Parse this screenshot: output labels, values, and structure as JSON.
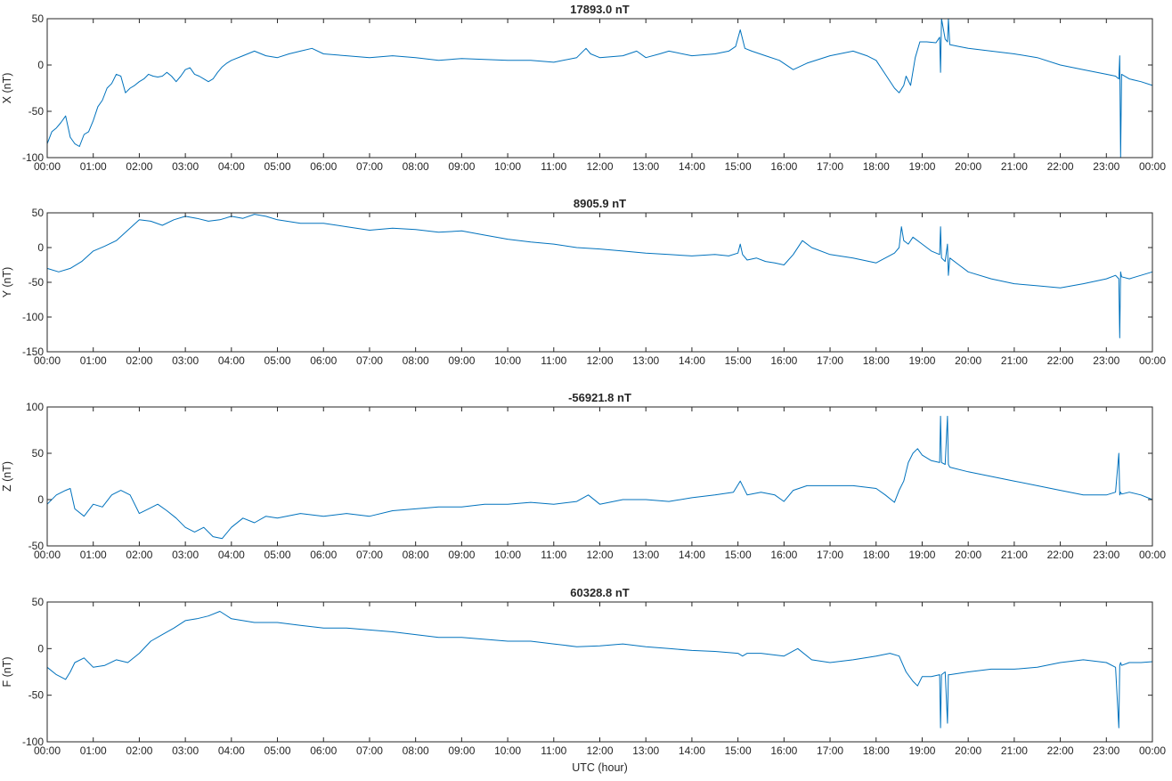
{
  "chart_data": [
    {
      "type": "line",
      "title": "17893.0 nT",
      "ylabel": "X (nT)",
      "xlabel": "",
      "ylim": [
        -100,
        50
      ],
      "yticks": [
        -100,
        -50,
        0,
        50
      ],
      "xlim": [
        0,
        24
      ],
      "xtick_labels": [
        "00:00",
        "01:00",
        "02:00",
        "03:00",
        "04:00",
        "05:00",
        "06:00",
        "07:00",
        "08:00",
        "09:00",
        "10:00",
        "11:00",
        "12:00",
        "13:00",
        "14:00",
        "15:00",
        "16:00",
        "17:00",
        "18:00",
        "19:00",
        "20:00",
        "21:00",
        "22:00",
        "23:00",
        "00:00"
      ],
      "grid": false,
      "color": "#0072BD",
      "series": [
        {
          "x": [
            0,
            0.1,
            0.2,
            0.3,
            0.4,
            0.5,
            0.6,
            0.7,
            0.8,
            0.9,
            1.0,
            1.1,
            1.2,
            1.3,
            1.4,
            1.5,
            1.6,
            1.7,
            1.8,
            1.9,
            2.0,
            2.1,
            2.2,
            2.3,
            2.4,
            2.5,
            2.6,
            2.7,
            2.8,
            2.9,
            3.0,
            3.1,
            3.2,
            3.3,
            3.4,
            3.5,
            3.6,
            3.7,
            3.8,
            3.9,
            4.0,
            4.25,
            4.5,
            4.75,
            5.0,
            5.25,
            5.5,
            5.75,
            6.0,
            6.5,
            7.0,
            7.5,
            8.0,
            8.5,
            9.0,
            9.5,
            10.0,
            10.5,
            11.0,
            11.5,
            11.7,
            11.8,
            12.0,
            12.5,
            12.8,
            13.0,
            13.3,
            13.5,
            14.0,
            14.5,
            14.8,
            14.95,
            15.05,
            15.15,
            15.3,
            15.6,
            15.9,
            16.2,
            16.5,
            17.0,
            17.5,
            17.8,
            18.0,
            18.2,
            18.4,
            18.5,
            18.6,
            18.65,
            18.75,
            18.85,
            18.95,
            19.1,
            19.3,
            19.38,
            19.4,
            19.42,
            19.5,
            19.55,
            19.57,
            19.6,
            19.8,
            20.0,
            20.5,
            21.0,
            21.5,
            22.0,
            22.5,
            23.0,
            23.2,
            23.27,
            23.29,
            23.31,
            23.33,
            23.5,
            23.75,
            24.0
          ],
          "y": [
            -85,
            -72,
            -68,
            -62,
            -55,
            -78,
            -85,
            -88,
            -75,
            -72,
            -60,
            -45,
            -38,
            -25,
            -20,
            -10,
            -12,
            -30,
            -25,
            -22,
            -18,
            -15,
            -10,
            -12,
            -13,
            -12,
            -8,
            -12,
            -18,
            -12,
            -5,
            -3,
            -10,
            -12,
            -15,
            -18,
            -15,
            -8,
            -2,
            2,
            5,
            10,
            15,
            10,
            8,
            12,
            15,
            18,
            12,
            10,
            8,
            10,
            8,
            5,
            7,
            6,
            5,
            5,
            3,
            8,
            18,
            12,
            8,
            10,
            15,
            8,
            12,
            15,
            10,
            12,
            15,
            20,
            38,
            18,
            15,
            10,
            5,
            -5,
            2,
            10,
            15,
            10,
            5,
            -10,
            -25,
            -30,
            -22,
            -12,
            -22,
            8,
            25,
            25,
            24,
            30,
            -8,
            50,
            28,
            25,
            50,
            22,
            20,
            18,
            15,
            12,
            8,
            0,
            -5,
            -10,
            -12,
            -15,
            10,
            -100,
            -10,
            -15,
            -18,
            -22
          ]
        }
      ]
    },
    {
      "type": "line",
      "title": "8905.9 nT",
      "ylabel": "Y (nT)",
      "xlabel": "",
      "ylim": [
        -150,
        50
      ],
      "yticks": [
        -150,
        -100,
        -50,
        0,
        50
      ],
      "xlim": [
        0,
        24
      ],
      "xtick_labels": [
        "00:00",
        "01:00",
        "02:00",
        "03:00",
        "04:00",
        "05:00",
        "06:00",
        "07:00",
        "08:00",
        "09:00",
        "10:00",
        "11:00",
        "12:00",
        "13:00",
        "14:00",
        "15:00",
        "16:00",
        "17:00",
        "18:00",
        "19:00",
        "20:00",
        "21:00",
        "22:00",
        "23:00",
        "00:00"
      ],
      "grid": false,
      "color": "#0072BD",
      "series": [
        {
          "x": [
            0,
            0.25,
            0.5,
            0.75,
            1.0,
            1.25,
            1.5,
            1.75,
            2.0,
            2.25,
            2.5,
            2.75,
            3.0,
            3.25,
            3.5,
            3.75,
            4.0,
            4.25,
            4.5,
            4.75,
            5.0,
            5.5,
            6.0,
            6.5,
            7.0,
            7.5,
            8.0,
            8.5,
            9.0,
            9.5,
            10.0,
            10.5,
            11.0,
            11.5,
            12.0,
            12.5,
            13.0,
            13.5,
            14.0,
            14.5,
            14.8,
            15.0,
            15.05,
            15.1,
            15.2,
            15.4,
            15.6,
            15.8,
            16.0,
            16.2,
            16.4,
            16.6,
            17.0,
            17.5,
            18.0,
            18.2,
            18.4,
            18.5,
            18.55,
            18.6,
            18.7,
            18.8,
            19.0,
            19.2,
            19.38,
            19.4,
            19.42,
            19.5,
            19.55,
            19.57,
            19.6,
            19.8,
            20.0,
            20.5,
            21.0,
            21.5,
            22.0,
            22.5,
            23.0,
            23.2,
            23.27,
            23.29,
            23.31,
            23.33,
            23.5,
            23.75,
            24.0
          ],
          "y": [
            -30,
            -35,
            -30,
            -20,
            -5,
            2,
            10,
            25,
            40,
            38,
            32,
            40,
            45,
            42,
            38,
            40,
            45,
            42,
            48,
            45,
            40,
            35,
            35,
            30,
            25,
            28,
            26,
            22,
            24,
            18,
            12,
            8,
            5,
            0,
            -2,
            -5,
            -8,
            -10,
            -12,
            -10,
            -12,
            -8,
            5,
            -10,
            -18,
            -15,
            -20,
            -22,
            -25,
            -10,
            10,
            0,
            -10,
            -15,
            -22,
            -15,
            -8,
            0,
            30,
            10,
            5,
            15,
            5,
            -5,
            -10,
            30,
            -15,
            -20,
            5,
            -40,
            -15,
            -25,
            -35,
            -45,
            -52,
            -55,
            -58,
            -52,
            -45,
            -40,
            -45,
            -130,
            -35,
            -42,
            -45,
            -40,
            -35
          ]
        }
      ]
    },
    {
      "type": "line",
      "title": "-56921.8 nT",
      "ylabel": "Z (nT)",
      "xlabel": "",
      "ylim": [
        -50,
        100
      ],
      "yticks": [
        -50,
        0,
        50,
        100
      ],
      "xlim": [
        0,
        24
      ],
      "xtick_labels": [
        "00:00",
        "01:00",
        "02:00",
        "03:00",
        "04:00",
        "05:00",
        "06:00",
        "07:00",
        "08:00",
        "09:00",
        "10:00",
        "11:00",
        "12:00",
        "13:00",
        "14:00",
        "15:00",
        "16:00",
        "17:00",
        "18:00",
        "19:00",
        "20:00",
        "21:00",
        "22:00",
        "23:00",
        "00:00"
      ],
      "grid": false,
      "color": "#0072BD",
      "series": [
        {
          "x": [
            0,
            0.2,
            0.4,
            0.5,
            0.6,
            0.8,
            1.0,
            1.2,
            1.4,
            1.6,
            1.8,
            2.0,
            2.2,
            2.4,
            2.6,
            2.8,
            3.0,
            3.2,
            3.4,
            3.6,
            3.8,
            4.0,
            4.25,
            4.5,
            4.75,
            5.0,
            5.5,
            6.0,
            6.5,
            7.0,
            7.5,
            8.0,
            8.5,
            9.0,
            9.5,
            10.0,
            10.5,
            11.0,
            11.5,
            11.75,
            12.0,
            12.5,
            13.0,
            13.5,
            14.0,
            14.5,
            14.9,
            15.05,
            15.2,
            15.5,
            15.8,
            16.0,
            16.2,
            16.5,
            17.0,
            17.5,
            18.0,
            18.2,
            18.4,
            18.5,
            18.6,
            18.7,
            18.8,
            18.9,
            19.0,
            19.2,
            19.38,
            19.4,
            19.42,
            19.5,
            19.55,
            19.57,
            19.6,
            20.0,
            20.5,
            21.0,
            21.5,
            22.0,
            22.5,
            23.0,
            23.2,
            23.27,
            23.29,
            23.31,
            23.33,
            23.5,
            23.75,
            24.0
          ],
          "y": [
            -5,
            5,
            10,
            12,
            -10,
            -18,
            -5,
            -8,
            5,
            10,
            5,
            -15,
            -10,
            -5,
            -12,
            -20,
            -30,
            -35,
            -30,
            -40,
            -42,
            -30,
            -20,
            -25,
            -18,
            -20,
            -15,
            -18,
            -15,
            -18,
            -12,
            -10,
            -8,
            -8,
            -5,
            -5,
            -3,
            -5,
            -2,
            5,
            -5,
            0,
            0,
            -2,
            2,
            5,
            8,
            20,
            5,
            8,
            5,
            -2,
            10,
            15,
            15,
            15,
            12,
            5,
            -3,
            10,
            20,
            40,
            50,
            55,
            48,
            42,
            40,
            90,
            40,
            38,
            90,
            38,
            35,
            30,
            25,
            20,
            15,
            10,
            5,
            5,
            8,
            50,
            5,
            8,
            6,
            8,
            5,
            0
          ]
        }
      ]
    },
    {
      "type": "line",
      "title": "60328.8 nT",
      "ylabel": "F (nT)",
      "xlabel": "UTC (hour)",
      "ylim": [
        -100,
        50
      ],
      "yticks": [
        -100,
        -50,
        0,
        50
      ],
      "xlim": [
        0,
        24
      ],
      "xtick_labels": [
        "00:00",
        "01:00",
        "02:00",
        "03:00",
        "04:00",
        "05:00",
        "06:00",
        "07:00",
        "08:00",
        "09:00",
        "10:00",
        "11:00",
        "12:00",
        "13:00",
        "14:00",
        "15:00",
        "16:00",
        "17:00",
        "18:00",
        "19:00",
        "20:00",
        "21:00",
        "22:00",
        "23:00",
        "00:00"
      ],
      "grid": false,
      "color": "#0072BD",
      "series": [
        {
          "x": [
            0,
            0.2,
            0.4,
            0.5,
            0.6,
            0.8,
            1.0,
            1.25,
            1.5,
            1.75,
            2.0,
            2.25,
            2.5,
            2.75,
            3.0,
            3.25,
            3.5,
            3.75,
            4.0,
            4.5,
            5.0,
            5.5,
            6.0,
            6.5,
            7.0,
            7.5,
            8.0,
            8.5,
            9.0,
            9.5,
            10.0,
            10.5,
            11.0,
            11.5,
            12.0,
            12.5,
            13.0,
            13.5,
            14.0,
            14.5,
            15.0,
            15.1,
            15.2,
            15.5,
            16.0,
            16.3,
            16.6,
            17.0,
            17.5,
            18.0,
            18.3,
            18.5,
            18.65,
            18.8,
            18.9,
            19.0,
            19.2,
            19.38,
            19.4,
            19.42,
            19.5,
            19.55,
            19.57,
            19.6,
            20.0,
            20.5,
            21.0,
            21.5,
            22.0,
            22.5,
            23.0,
            23.2,
            23.27,
            23.29,
            23.31,
            23.33,
            23.5,
            23.75,
            24.0
          ],
          "y": [
            -20,
            -28,
            -33,
            -25,
            -15,
            -10,
            -20,
            -18,
            -12,
            -15,
            -5,
            8,
            15,
            22,
            30,
            32,
            35,
            40,
            32,
            28,
            28,
            25,
            22,
            22,
            20,
            18,
            15,
            12,
            12,
            10,
            8,
            8,
            5,
            2,
            3,
            5,
            2,
            0,
            -2,
            -3,
            -5,
            -8,
            -5,
            -5,
            -8,
            0,
            -12,
            -15,
            -12,
            -8,
            -5,
            -8,
            -25,
            -35,
            -40,
            -30,
            -30,
            -28,
            -85,
            -28,
            -25,
            -80,
            -28,
            -28,
            -25,
            -22,
            -22,
            -20,
            -15,
            -12,
            -15,
            -20,
            -85,
            -18,
            -15,
            -18,
            -15,
            -15,
            -14
          ]
        }
      ]
    }
  ]
}
